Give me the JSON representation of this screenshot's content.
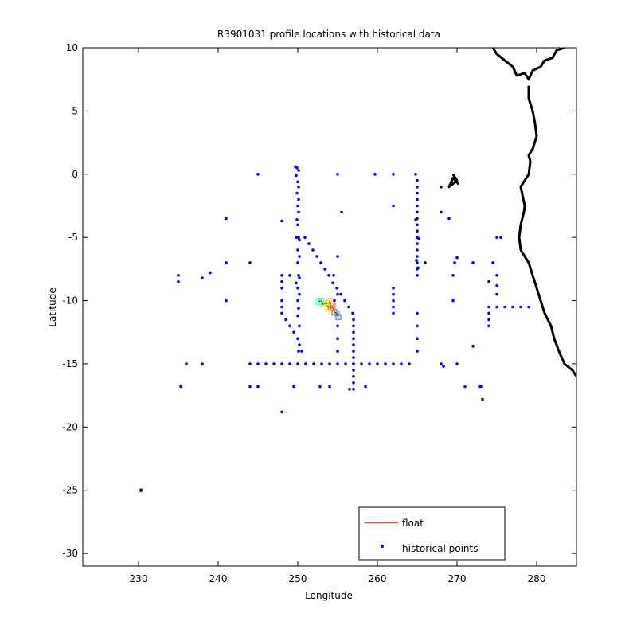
{
  "chart_data": {
    "type": "scatter",
    "title": "R3901031 profile locations with historical data",
    "xlabel": "Longitude",
    "ylabel": "Latitude",
    "xlim": [
      223,
      285
    ],
    "ylim": [
      -31,
      10
    ],
    "grid": false,
    "xticks": [
      230,
      240,
      250,
      260,
      270,
      280
    ],
    "yticks": [
      10,
      5,
      0,
      -5,
      -10,
      -15,
      -20,
      -25,
      -30
    ],
    "legend": {
      "position": "bottom-right",
      "entries": [
        {
          "label": "float",
          "color": "#ff0000",
          "marker": "line"
        },
        {
          "label": "historical points",
          "color": "#0000ff",
          "marker": "dot"
        }
      ]
    },
    "colors": {
      "historical": "#0000ff",
      "float": "#ff0000",
      "coast": "#000000"
    },
    "series": [
      {
        "name": "historical points",
        "points": [
          [
            245,
            0
          ],
          [
            249.7,
            0.6
          ],
          [
            249.9,
            0.5
          ],
          [
            250.1,
            0.3
          ],
          [
            249.8,
            -0.1
          ],
          [
            250,
            -0.6
          ],
          [
            250.1,
            -1
          ],
          [
            249.9,
            -1.5
          ],
          [
            250.1,
            -2
          ],
          [
            250,
            -2.5
          ],
          [
            250.1,
            -3
          ],
          [
            249.9,
            -3.6
          ],
          [
            250,
            -4
          ],
          [
            249.8,
            -5
          ],
          [
            250.1,
            -5
          ],
          [
            250.2,
            -5.2
          ],
          [
            250,
            -6
          ],
          [
            250.2,
            -6.5
          ],
          [
            250,
            -7
          ],
          [
            250.1,
            -8
          ],
          [
            249.8,
            -8.6
          ],
          [
            250.2,
            -8.2
          ],
          [
            250,
            -9
          ],
          [
            250.2,
            -9.5
          ],
          [
            250,
            -10
          ],
          [
            250.1,
            -10.6
          ],
          [
            250,
            -11.2
          ],
          [
            250.2,
            -12
          ],
          [
            250,
            -13
          ],
          [
            250.2,
            -13.5
          ],
          [
            250.1,
            -14
          ],
          [
            250.9,
            -5
          ],
          [
            251.4,
            -5.5
          ],
          [
            251.9,
            -6
          ],
          [
            252.4,
            -6.5
          ],
          [
            252.9,
            -7
          ],
          [
            253.4,
            -7.5
          ],
          [
            253.9,
            -8
          ],
          [
            254.4,
            -8.6
          ],
          [
            254.9,
            -9
          ],
          [
            255.4,
            -9.5
          ],
          [
            255.9,
            -10
          ],
          [
            256.4,
            -10.5
          ],
          [
            256.9,
            -11
          ],
          [
            257,
            -11.5
          ],
          [
            257,
            -12
          ],
          [
            257,
            -12.5
          ],
          [
            257,
            -13
          ],
          [
            257,
            -13.5
          ],
          [
            257,
            -14
          ],
          [
            257,
            -14.5
          ],
          [
            257,
            -15
          ],
          [
            257,
            -15.5
          ],
          [
            257,
            -16
          ],
          [
            257,
            -16.5
          ],
          [
            257,
            -17
          ],
          [
            255,
            0
          ],
          [
            255.5,
            -3
          ],
          [
            255,
            -6.5
          ],
          [
            254.5,
            -8
          ],
          [
            255,
            -9.5
          ],
          [
            254.6,
            -10
          ],
          [
            255,
            -12
          ],
          [
            255,
            -13
          ],
          [
            255,
            -14
          ],
          [
            259.7,
            0
          ],
          [
            262,
            0
          ],
          [
            262,
            -2.5
          ],
          [
            264.8,
            0
          ],
          [
            265,
            -0.5
          ],
          [
            265,
            -1
          ],
          [
            265,
            -1.5
          ],
          [
            265,
            -2
          ],
          [
            265,
            -2.5
          ],
          [
            265,
            -3
          ],
          [
            265,
            -3.5
          ],
          [
            265,
            -4
          ],
          [
            265,
            -4.5
          ],
          [
            265,
            -5
          ],
          [
            265,
            -5.5
          ],
          [
            265,
            -6
          ],
          [
            265,
            -6.5
          ],
          [
            265,
            -7
          ],
          [
            265,
            -7.5
          ],
          [
            265,
            -8
          ],
          [
            264.8,
            -3.6
          ],
          [
            265.2,
            -5.1
          ],
          [
            264.9,
            -6.8
          ],
          [
            265.1,
            -7.4
          ],
          [
            266,
            -7
          ],
          [
            268,
            -1
          ],
          [
            268,
            -3
          ],
          [
            269,
            -3.5
          ],
          [
            262,
            -9
          ],
          [
            262,
            -9.5
          ],
          [
            262,
            -10
          ],
          [
            262,
            -10.5
          ],
          [
            262,
            -11
          ],
          [
            265,
            -11
          ],
          [
            265,
            -12
          ],
          [
            265,
            -13
          ],
          [
            265,
            -14
          ],
          [
            244,
            -15
          ],
          [
            245,
            -15
          ],
          [
            246,
            -15
          ],
          [
            247,
            -15
          ],
          [
            248,
            -15
          ],
          [
            249,
            -15
          ],
          [
            250,
            -15
          ],
          [
            251,
            -15
          ],
          [
            252,
            -15
          ],
          [
            253,
            -15
          ],
          [
            254,
            -15
          ],
          [
            255,
            -15
          ],
          [
            256,
            -15
          ],
          [
            257,
            -15
          ],
          [
            258,
            -15
          ],
          [
            259,
            -15
          ],
          [
            260,
            -15
          ],
          [
            261,
            -15
          ],
          [
            262,
            -15
          ],
          [
            263,
            -15
          ],
          [
            264,
            -15
          ],
          [
            248,
            -8
          ],
          [
            248,
            -8.5
          ],
          [
            248,
            -9
          ],
          [
            248,
            -10
          ],
          [
            248,
            -10.5
          ],
          [
            248,
            -11
          ],
          [
            248.5,
            -11.5
          ],
          [
            249,
            -12
          ],
          [
            249.5,
            -12.5
          ],
          [
            250.5,
            -14
          ],
          [
            251,
            -15
          ],
          [
            244,
            -7
          ],
          [
            248,
            -3.7
          ],
          [
            249,
            -8
          ],
          [
            241,
            -3.5
          ],
          [
            241,
            -7
          ],
          [
            241,
            -10
          ],
          [
            239,
            -7.8
          ],
          [
            238,
            -8.2
          ],
          [
            238,
            -15
          ],
          [
            236,
            -15
          ],
          [
            235,
            -8
          ],
          [
            235,
            -8.5
          ],
          [
            235.3,
            -16.8
          ],
          [
            244,
            -16.8
          ],
          [
            245,
            -16.8
          ],
          [
            248,
            -18.8
          ],
          [
            249.5,
            -16.8
          ],
          [
            252.8,
            -16.8
          ],
          [
            254,
            -16.8
          ],
          [
            256.5,
            -17
          ],
          [
            258.5,
            -16.8
          ],
          [
            268,
            -15
          ],
          [
            268.3,
            -15.2
          ],
          [
            270,
            -15
          ],
          [
            271,
            -16.8
          ],
          [
            272,
            -13.6
          ],
          [
            272.8,
            -16.8
          ],
          [
            273.2,
            -17.8
          ],
          [
            273,
            -16.8
          ],
          [
            270,
            -6.6
          ],
          [
            269.7,
            -7
          ],
          [
            269.5,
            -8
          ],
          [
            269.5,
            -10
          ],
          [
            272,
            -7
          ],
          [
            275,
            -5
          ],
          [
            275.5,
            -5
          ],
          [
            274.5,
            -7
          ],
          [
            274,
            -8.5
          ],
          [
            275,
            -8
          ],
          [
            275,
            -8.8
          ],
          [
            275,
            -9.5
          ],
          [
            274,
            -10.5
          ],
          [
            274,
            -11
          ],
          [
            274,
            -11.5
          ],
          [
            274,
            -12
          ],
          [
            276,
            -10.5
          ],
          [
            277,
            -10.5
          ],
          [
            278,
            -10.5
          ],
          [
            279,
            -10.5
          ],
          [
            275,
            -10.5
          ]
        ]
      },
      {
        "name": "float",
        "points": [
          [
            252.6,
            -10.1
          ],
          [
            252.9,
            -10
          ],
          [
            253.2,
            -10.3
          ],
          [
            253.6,
            -10.2
          ],
          [
            253.8,
            -10.5
          ],
          [
            254,
            -10
          ],
          [
            254.2,
            -10.6
          ],
          [
            254.4,
            -10.4
          ],
          [
            254.6,
            -10.9
          ],
          [
            254.9,
            -11
          ],
          [
            255.1,
            -11.3
          ]
        ]
      }
    ],
    "float_point_colors": [
      "#00ffff",
      "#33ff99",
      "#66ff66",
      "#99ff33",
      "#ccff00",
      "#ffcc00",
      "#ff9900",
      "#ff6600",
      "#ff3300",
      "#0099ff",
      "#0066ff"
    ],
    "coastline": [
      [
        269.5,
        0
      ],
      [
        270,
        -0.5
      ],
      [
        269,
        -1
      ],
      [
        269.5,
        -0.3
      ],
      [
        270.2,
        -0.8
      ],
      [
        274.5,
        10
      ],
      [
        275,
        9.5
      ],
      [
        276,
        9
      ],
      [
        277,
        8.5
      ],
      [
        277.5,
        7.8
      ],
      [
        278.5,
        8
      ],
      [
        279,
        7.5
      ],
      [
        279.5,
        8.2
      ],
      [
        280.5,
        8.5
      ],
      [
        281,
        9
      ],
      [
        282,
        9.2
      ],
      [
        282.5,
        9.8
      ],
      [
        283.5,
        10
      ],
      [
        279,
        7
      ],
      [
        279,
        6
      ],
      [
        279.5,
        5
      ],
      [
        279.8,
        4
      ],
      [
        280,
        3
      ],
      [
        279.5,
        2
      ],
      [
        279,
        1.5
      ],
      [
        279.2,
        1
      ],
      [
        279,
        0
      ],
      [
        278.5,
        -0.5
      ],
      [
        278,
        -1
      ],
      [
        278.5,
        -2.5
      ],
      [
        278.4,
        -3
      ],
      [
        278,
        -4
      ],
      [
        277.8,
        -5
      ],
      [
        278,
        -6
      ],
      [
        279,
        -7
      ],
      [
        279.5,
        -8
      ],
      [
        280,
        -9
      ],
      [
        280.5,
        -10
      ],
      [
        281,
        -11
      ],
      [
        281.8,
        -12
      ],
      [
        282.2,
        -13
      ],
      [
        282.8,
        -14
      ],
      [
        283.5,
        -15
      ],
      [
        284.5,
        -15.5
      ],
      [
        285,
        -16
      ]
    ],
    "extra_point": [
      230.3,
      -25
    ]
  }
}
